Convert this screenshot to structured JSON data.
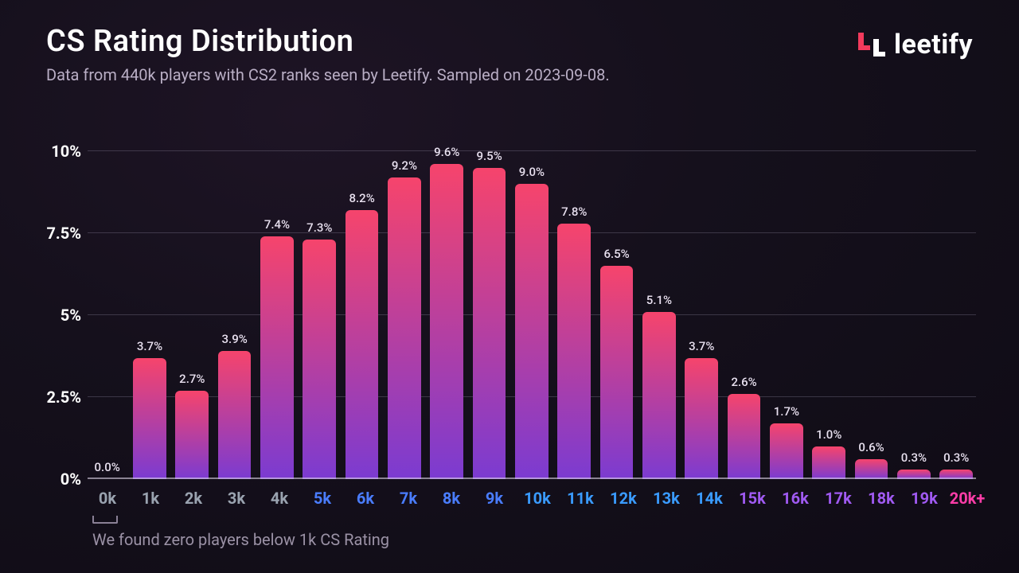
{
  "header": {
    "title": "CS Rating Distribution",
    "subtitle": "Data from 440k players with CS2 ranks seen by Leetify. Sampled on 2023-09-08."
  },
  "logo": {
    "text": "leetify",
    "mark_color": "#f23a5c"
  },
  "chart": {
    "type": "bar",
    "ylim": [
      0,
      10
    ],
    "yticks": [
      0,
      2.5,
      5,
      7.5,
      10
    ],
    "ytick_labels": [
      "0%",
      "2.5%",
      "5%",
      "7.5%",
      "10%"
    ],
    "ytick_fontsize": 20,
    "grid_color": "rgba(180,170,200,0.25)",
    "baseline_color": "rgba(220,210,230,0.6)",
    "bar_gradient_top": "#f6446c",
    "bar_gradient_bottom": "#7b3bd1",
    "bar_label_color": "#e8e0ef",
    "bar_label_fontsize": 15,
    "bar_border_radius": 6,
    "categories": [
      "0k",
      "1k",
      "2k",
      "3k",
      "4k",
      "5k",
      "6k",
      "7k",
      "8k",
      "9k",
      "10k",
      "11k",
      "12k",
      "13k",
      "14k",
      "15k",
      "16k",
      "17k",
      "18k",
      "19k",
      "20k+"
    ],
    "category_colors": [
      "#9aa3b0",
      "#9aa3b0",
      "#9aa3b0",
      "#9aa3b0",
      "#9aa3b0",
      "#4a7dff",
      "#4a7dff",
      "#4a7dff",
      "#4a7dff",
      "#4a7dff",
      "#3a9bff",
      "#3a9bff",
      "#3a9bff",
      "#3a9bff",
      "#3a9bff",
      "#a05af2",
      "#a05af2",
      "#a05af2",
      "#a05af2",
      "#a05af2",
      "#ff3da8"
    ],
    "xtick_fontsize": 20,
    "values": [
      0.0,
      3.7,
      2.7,
      3.9,
      7.4,
      7.3,
      8.2,
      9.2,
      9.6,
      9.5,
      9.0,
      7.8,
      6.5,
      5.1,
      3.7,
      2.6,
      1.7,
      1.0,
      0.6,
      0.3,
      0.3
    ],
    "value_labels": [
      "0.0%",
      "3.7%",
      "2.7%",
      "3.9%",
      "7.4%",
      "7.3%",
      "8.2%",
      "9.2%",
      "9.6%",
      "9.5%",
      "9.0%",
      "7.8%",
      "6.5%",
      "5.1%",
      "3.7%",
      "2.6%",
      "1.7%",
      "1.0%",
      "0.6%",
      "0.3%",
      "0.3%"
    ]
  },
  "footnote": {
    "text": "We found zero players below 1k CS Rating",
    "color": "#9b92a6",
    "bracket_color": "#8a8096"
  },
  "background": {
    "start": "#1e1425",
    "mid": "#15101c",
    "end": "#0f0b15"
  }
}
